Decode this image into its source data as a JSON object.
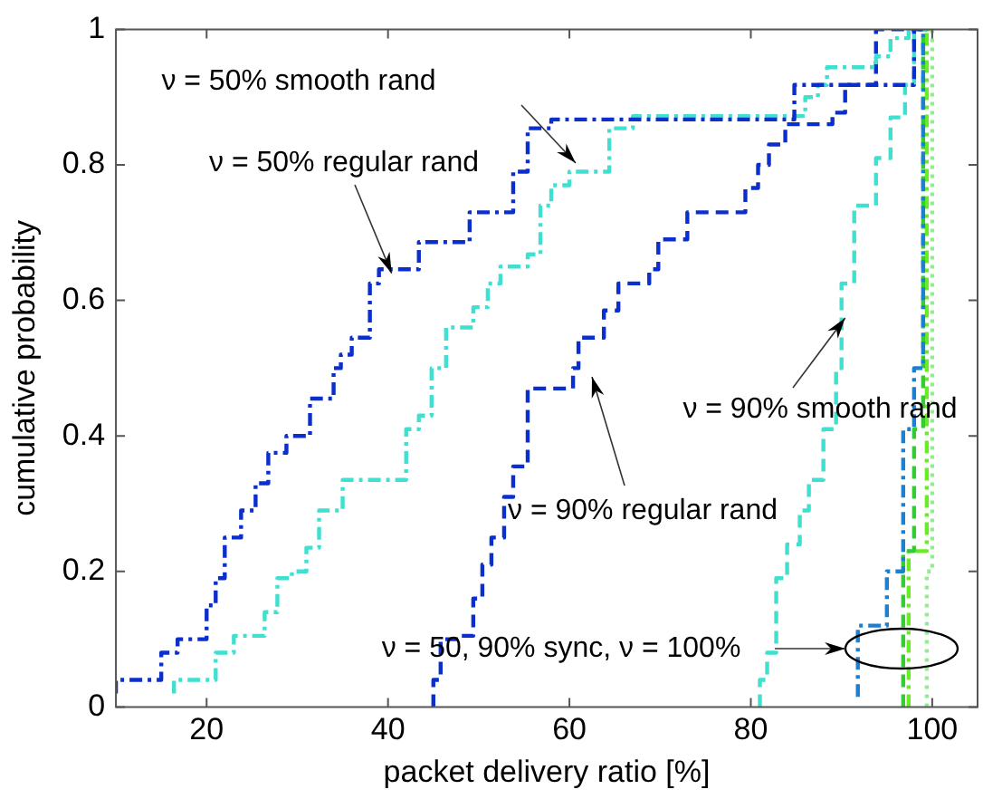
{
  "chart_data": {
    "type": "step",
    "xlabel": "packet delivery ratio [%]",
    "ylabel": "cumulative probability",
    "xlim": [
      10,
      105
    ],
    "xticks": [
      20,
      40,
      60,
      80,
      100
    ],
    "ylim": [
      0,
      1
    ],
    "yticks": [
      0,
      0.2,
      0.4,
      0.6,
      0.8,
      1
    ],
    "grid": false,
    "legend": false,
    "marker": "none",
    "series": [
      {
        "color": "#0a2fcc",
        "line_style": "dashdot",
        "x": [
          10,
          15,
          16.8,
          20,
          21,
          22,
          23.8,
          25.4,
          26.8,
          28.8,
          31.4,
          34,
          34.8,
          36,
          38,
          39,
          43.4,
          45.8,
          49,
          50.8,
          53.8,
          55.4,
          58,
          84.8,
          87.6,
          98,
          99
        ],
        "values": [
          0.02,
          0.04,
          0.08,
          0.1,
          0.15,
          0.19,
          0.25,
          0.29,
          0.33,
          0.375,
          0.4,
          0.455,
          0.5,
          0.52,
          0.545,
          0.625,
          0.646,
          0.686,
          0.686,
          0.73,
          0.73,
          0.79,
          0.854,
          0.867,
          0.918,
          0.918,
          1
        ]
      },
      {
        "color": "#40e0d0",
        "line_style": "dashdot",
        "x": [
          16.4,
          21,
          23,
          26.4,
          27.8,
          29.4,
          31,
          32.4,
          35,
          39.8,
          42,
          43.4,
          44.8,
          46.4,
          49.4,
          51,
          52.4,
          55.4,
          56.8,
          58,
          60,
          64.4,
          67,
          86,
          87.4,
          88.4,
          93.8,
          95.4,
          97.4,
          98
        ],
        "values": [
          0.02,
          0.04,
          0.08,
          0.105,
          0.14,
          0.19,
          0.2,
          0.235,
          0.29,
          0.335,
          0.335,
          0.41,
          0.43,
          0.5,
          0.56,
          0.59,
          0.625,
          0.65,
          0.668,
          0.74,
          0.77,
          0.79,
          0.854,
          0.872,
          0.9,
          0.918,
          0.944,
          0.96,
          0.987,
          1
        ]
      },
      {
        "color": "#0a2fcc",
        "line_style": "dashed",
        "x": [
          45,
          45.8,
          48,
          49.4,
          50.4,
          51.4,
          52.8,
          53.8,
          55.4,
          60.4,
          61,
          63.8,
          65.4,
          68.8,
          69.8,
          73,
          79.4,
          80.8,
          82,
          83.8,
          89,
          90.4,
          93.8,
          98.8
        ],
        "values": [
          0,
          0.04,
          0.1,
          0.105,
          0.16,
          0.21,
          0.25,
          0.31,
          0.355,
          0.47,
          0.5,
          0.545,
          0.585,
          0.625,
          0.646,
          0.69,
          0.73,
          0.766,
          0.8,
          0.83,
          0.86,
          0.877,
          0.918,
          1
        ]
      },
      {
        "color": "#40e0d0",
        "line_style": "dashed",
        "x": [
          81,
          81.8,
          82.8,
          84,
          85.4,
          86.4,
          88,
          89.4,
          90,
          91.4,
          93.8,
          95.4,
          97,
          98,
          99.4
        ],
        "values": [
          0,
          0.04,
          0.08,
          0.19,
          0.24,
          0.29,
          0.335,
          0.41,
          0.5,
          0.625,
          0.74,
          0.81,
          0.87,
          0.918,
          1
        ]
      },
      {
        "color": "#1c7fd0",
        "line_style": "dashdot",
        "x": [
          91.8,
          95,
          96.8,
          98,
          99,
          99.4
        ],
        "values": [
          0.015,
          0.12,
          0.2,
          0.41,
          0.5,
          1
        ]
      },
      {
        "color": "#33cc33",
        "line_style": "dashed",
        "x": [
          96.8,
          98,
          99,
          99.6
        ],
        "values": [
          0,
          0.23,
          0.41,
          1
        ]
      },
      {
        "color": "#66ee22",
        "line_style": "dashdot",
        "x": [
          97.4,
          99.4,
          99.8
        ],
        "values": [
          0,
          0.23,
          1
        ]
      },
      {
        "color": "#90ee90",
        "line_style": "dotted",
        "x": [
          99.4,
          100,
          100.2
        ],
        "values": [
          0,
          0.2,
          1
        ]
      }
    ],
    "annotations": [
      "ν = 50% smooth rand",
      {
        "text": "ν = 50% regular rand",
        "x": 40.4,
        "y": 0.64
      },
      "ν = 90% regular rand",
      {
        "text": "ν = 90% smooth rand",
        "x": 90.4,
        "y": 0.574
      },
      "ν = 50, 90% sync, ν = 100%"
    ]
  }
}
